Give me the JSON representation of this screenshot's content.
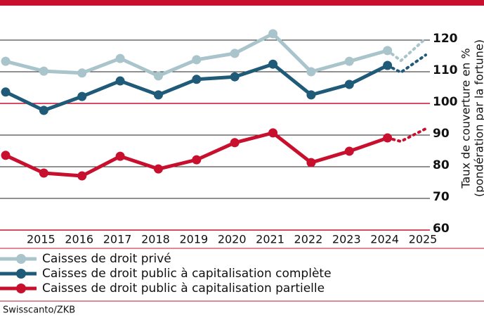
{
  "chart_data": {
    "type": "line",
    "y_label": [
      "Taux de couverture en %",
      "(pondération par la fortune)"
    ],
    "x": [
      2014,
      2015,
      2016,
      2017,
      2018,
      2019,
      2020,
      2021,
      2022,
      2023,
      2024
    ],
    "xlim": [
      2014,
      2025
    ],
    "xticks": [
      2015,
      2016,
      2017,
      2018,
      2019,
      2020,
      2021,
      2022,
      2023,
      2024,
      2025
    ],
    "ylim": [
      60,
      125
    ],
    "yticks": [
      60,
      70,
      80,
      90,
      100,
      110,
      120
    ],
    "grid": true,
    "reference_value": 100,
    "reference_color": "#c8102e",
    "series": [
      {
        "name": "Caisses de droit privé",
        "color": "#a9c4cb",
        "values": [
          113.3,
          110.2,
          109.6,
          114.2,
          108.7,
          113.8,
          115.8,
          122,
          110,
          113.3,
          116.7
        ],
        "projection": {
          "x": [
            2024,
            2024.35,
            2025
          ],
          "values": [
            116.7,
            113.5,
            120.5
          ]
        }
      },
      {
        "name": "Caisses de droit public à capitalisation complète",
        "color": "#1f5a78",
        "values": [
          103.6,
          97.8,
          102.2,
          107.1,
          102.7,
          107.6,
          108.4,
          112.4,
          102.7,
          106,
          112
        ],
        "projection": {
          "x": [
            2024,
            2024.35,
            2025
          ],
          "values": [
            112,
            109.8,
            115.3
          ]
        }
      },
      {
        "name": "Caisses de droit public à capitalisation partielle",
        "color": "#c8102e",
        "values": [
          83.6,
          78,
          77.1,
          83.3,
          79.3,
          82.2,
          87.6,
          90.7,
          81.3,
          84.9,
          89.1
        ],
        "projection": {
          "x": [
            2024,
            2024.35,
            2025
          ],
          "values": [
            89.1,
            88,
            92
          ]
        }
      }
    ],
    "source": "Swisscanto/ZKB"
  }
}
